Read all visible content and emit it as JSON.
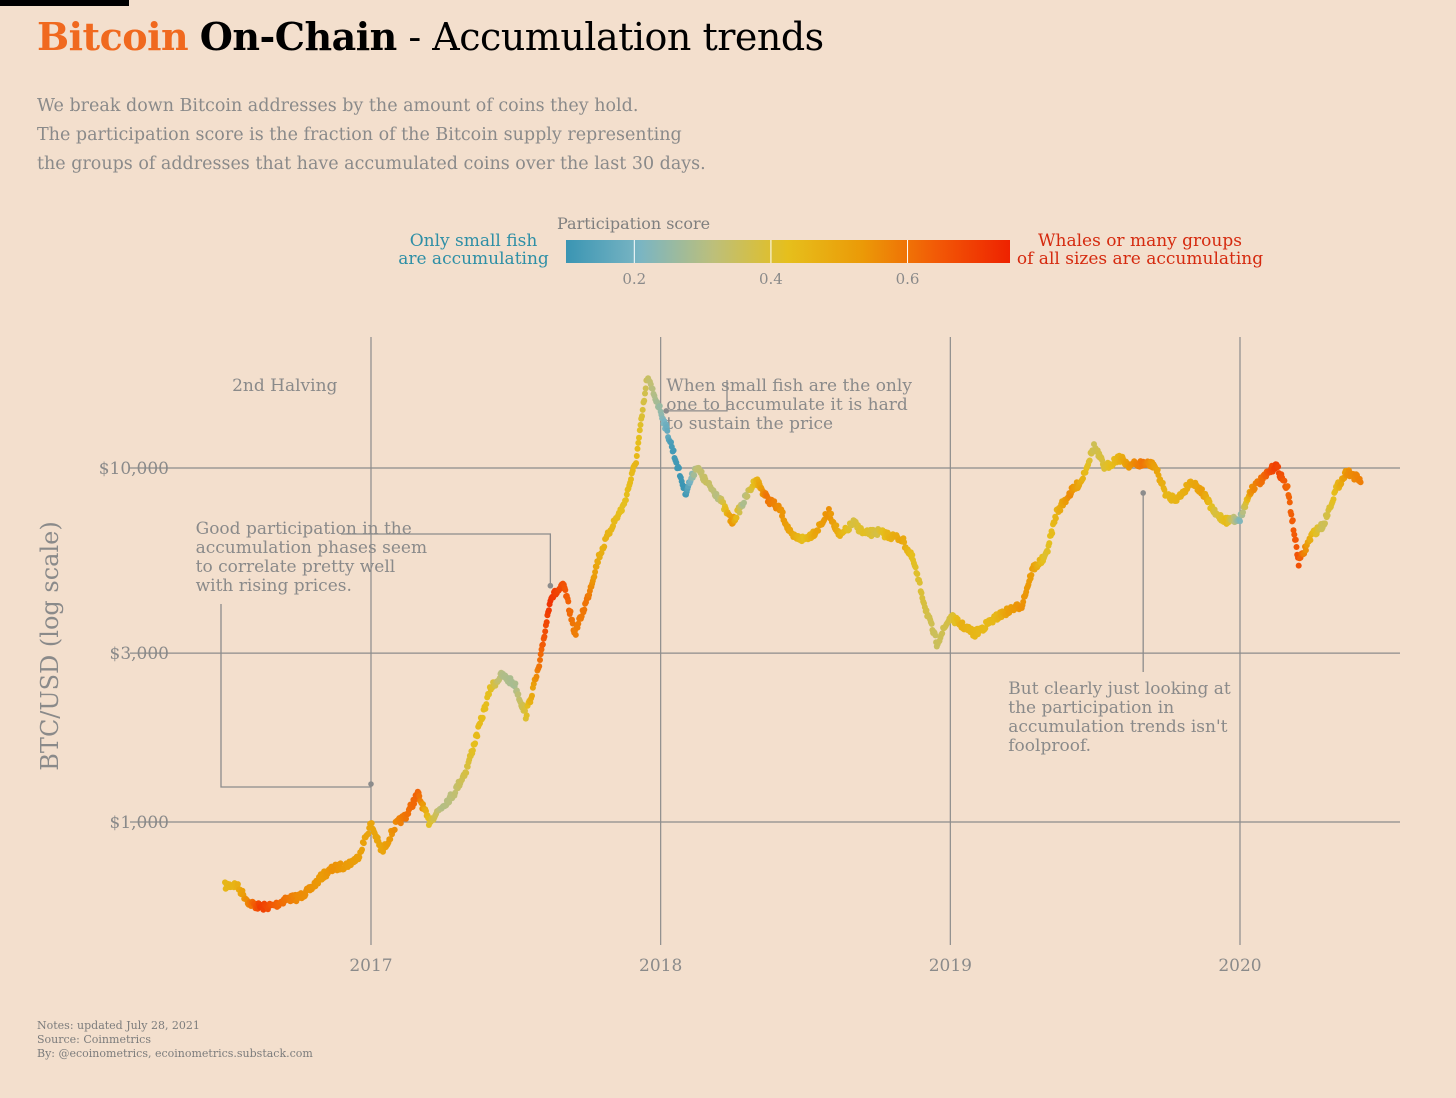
{
  "header": {
    "title_part1": "Bitcoin",
    "title_part2": "On-Chain",
    "title_part3": " - Accumulation trends",
    "subtitle_lines": [
      "We break down Bitcoin addresses by the amount of coins they hold.",
      "The participation score is the fraction of the Bitcoin supply representing",
      "the groups of addresses that have accumulated coins over the last 30 days."
    ]
  },
  "legend": {
    "title": "Participation score",
    "left_label_lines": [
      "Only small fish",
      "are accumulating"
    ],
    "right_label_lines": [
      "Whales or many groups",
      "of all sizes are accumulating"
    ],
    "ticks": [
      "0.2",
      "0.4",
      "0.6"
    ],
    "tick_values": [
      0.2,
      0.4,
      0.6
    ],
    "range": [
      0.1,
      0.75
    ],
    "colors": [
      "#3a95b3",
      "#7ab5c3",
      "#bdbf7a",
      "#e6bf1c",
      "#eb9a07",
      "#f25a06",
      "#ee2200"
    ]
  },
  "chart_data": {
    "type": "scatter",
    "ylabel": "BTC/USD (log scale)",
    "yscale": "log",
    "ylim": [
      420,
      26000
    ],
    "xlim": [
      "2016-07-01",
      "2020-06-01"
    ],
    "y_ticks": [
      1000,
      3000,
      10000
    ],
    "y_tick_labels": [
      "$1,000",
      "$3,000",
      "$10,000"
    ],
    "x_ticks": [
      "2017-01-01",
      "2018-01-01",
      "2019-01-01",
      "2020-01-01"
    ],
    "x_tick_labels": [
      "2017",
      "2018",
      "2019",
      "2020"
    ],
    "grid": true,
    "color_by": "participation_score",
    "series": [
      {
        "points": [
          [
            "2016-07-01",
            660,
            0.45
          ],
          [
            "2016-07-15",
            665,
            0.46
          ],
          [
            "2016-08-01",
            590,
            0.58
          ],
          [
            "2016-08-15",
            575,
            0.7
          ],
          [
            "2016-09-01",
            580,
            0.64
          ],
          [
            "2016-09-15",
            605,
            0.6
          ],
          [
            "2016-10-01",
            612,
            0.56
          ],
          [
            "2016-10-15",
            640,
            0.55
          ],
          [
            "2016-11-01",
            705,
            0.53
          ],
          [
            "2016-11-15",
            740,
            0.55
          ],
          [
            "2016-12-01",
            755,
            0.53
          ],
          [
            "2016-12-15",
            790,
            0.52
          ],
          [
            "2017-01-01",
            990,
            0.5
          ],
          [
            "2017-01-15",
            820,
            0.5
          ],
          [
            "2017-02-01",
            980,
            0.56
          ],
          [
            "2017-02-15",
            1050,
            0.6
          ],
          [
            "2017-03-01",
            1200,
            0.63
          ],
          [
            "2017-03-15",
            1000,
            0.42
          ],
          [
            "2017-04-01",
            1110,
            0.3
          ],
          [
            "2017-04-15",
            1200,
            0.32
          ],
          [
            "2017-05-01",
            1400,
            0.38
          ],
          [
            "2017-05-15",
            1780,
            0.44
          ],
          [
            "2017-06-01",
            2400,
            0.42
          ],
          [
            "2017-06-15",
            2600,
            0.3
          ],
          [
            "2017-07-01",
            2450,
            0.28
          ],
          [
            "2017-07-15",
            2000,
            0.4
          ],
          [
            "2017-08-01",
            2750,
            0.6
          ],
          [
            "2017-08-15",
            4300,
            0.72
          ],
          [
            "2017-09-01",
            4650,
            0.66
          ],
          [
            "2017-09-15",
            3400,
            0.58
          ],
          [
            "2017-10-01",
            4300,
            0.6
          ],
          [
            "2017-10-15",
            5600,
            0.48
          ],
          [
            "2017-11-01",
            6900,
            0.45
          ],
          [
            "2017-11-15",
            7800,
            0.42
          ],
          [
            "2017-12-01",
            10500,
            0.45
          ],
          [
            "2017-12-15",
            18000,
            0.35
          ],
          [
            "2018-01-01",
            14500,
            0.25
          ],
          [
            "2018-01-15",
            11500,
            0.12
          ],
          [
            "2018-02-01",
            8500,
            0.1
          ],
          [
            "2018-02-15",
            10100,
            0.32
          ],
          [
            "2018-03-01",
            9000,
            0.35
          ],
          [
            "2018-03-15",
            8300,
            0.3
          ],
          [
            "2018-04-01",
            7000,
            0.55
          ],
          [
            "2018-04-15",
            8000,
            0.28
          ],
          [
            "2018-05-01",
            9300,
            0.45
          ],
          [
            "2018-05-15",
            8200,
            0.6
          ],
          [
            "2018-06-01",
            7600,
            0.55
          ],
          [
            "2018-06-15",
            6400,
            0.5
          ],
          [
            "2018-07-01",
            6300,
            0.42
          ],
          [
            "2018-07-15",
            6600,
            0.5
          ],
          [
            "2018-08-01",
            7500,
            0.55
          ],
          [
            "2018-08-15",
            6400,
            0.47
          ],
          [
            "2018-09-01",
            7000,
            0.38
          ],
          [
            "2018-09-15",
            6500,
            0.42
          ],
          [
            "2018-10-01",
            6600,
            0.38
          ],
          [
            "2018-10-15",
            6450,
            0.46
          ],
          [
            "2018-11-01",
            6300,
            0.5
          ],
          [
            "2018-11-15",
            5500,
            0.42
          ],
          [
            "2018-12-01",
            4000,
            0.38
          ],
          [
            "2018-12-15",
            3200,
            0.35
          ],
          [
            "2019-01-01",
            3800,
            0.38
          ],
          [
            "2019-01-15",
            3600,
            0.47
          ],
          [
            "2019-02-01",
            3400,
            0.45
          ],
          [
            "2019-02-15",
            3600,
            0.44
          ],
          [
            "2019-03-01",
            3800,
            0.45
          ],
          [
            "2019-03-15",
            3950,
            0.52
          ],
          [
            "2019-04-01",
            4100,
            0.55
          ],
          [
            "2019-04-15",
            5200,
            0.52
          ],
          [
            "2019-05-01",
            5600,
            0.4
          ],
          [
            "2019-05-15",
            7500,
            0.46
          ],
          [
            "2019-06-01",
            8500,
            0.56
          ],
          [
            "2019-06-15",
            9200,
            0.48
          ],
          [
            "2019-07-01",
            11500,
            0.36
          ],
          [
            "2019-07-15",
            10000,
            0.4
          ],
          [
            "2019-08-01",
            10700,
            0.46
          ],
          [
            "2019-08-15",
            10200,
            0.54
          ],
          [
            "2019-09-01",
            10300,
            0.6
          ],
          [
            "2019-09-15",
            10200,
            0.52
          ],
          [
            "2019-10-01",
            8300,
            0.45
          ],
          [
            "2019-10-15",
            8200,
            0.46
          ],
          [
            "2019-11-01",
            9200,
            0.49
          ],
          [
            "2019-11-15",
            8500,
            0.52
          ],
          [
            "2019-12-01",
            7400,
            0.38
          ],
          [
            "2019-12-15",
            7100,
            0.44
          ],
          [
            "2020-01-01",
            7200,
            0.22
          ],
          [
            "2020-01-15",
            8700,
            0.55
          ],
          [
            "2020-02-01",
            9400,
            0.62
          ],
          [
            "2020-02-15",
            10200,
            0.7
          ],
          [
            "2020-03-01",
            8700,
            0.62
          ],
          [
            "2020-03-15",
            5400,
            0.66
          ],
          [
            "2020-04-01",
            6500,
            0.45
          ],
          [
            "2020-04-15",
            6900,
            0.35
          ],
          [
            "2020-05-01",
            8700,
            0.44
          ],
          [
            "2020-05-15",
            9800,
            0.55
          ],
          [
            "2020-06-01",
            9200,
            0.58
          ]
        ]
      }
    ],
    "annotations": [
      {
        "id": "halving",
        "lines": [
          "2nd Halving"
        ],
        "text_at": [
          "2016-07-10",
          16500
        ]
      },
      {
        "id": "small-fish",
        "lines": [
          "When small fish are the only",
          "one to accumulate it is hard",
          "to sustain the price"
        ],
        "text_at": [
          "2018-01-08",
          16500
        ],
        "point": [
          "2018-01-08",
          14500
        ]
      },
      {
        "id": "good-participation",
        "lines": [
          "Good participation in the",
          "accumulation phases seem",
          "to correlate pretty well",
          "with rising prices."
        ],
        "text_at": [
          "2016-05-25",
          6500
        ],
        "points": [
          [
            "2017-08-15",
            4650
          ],
          [
            "2017-01-01",
            1280
          ]
        ]
      },
      {
        "id": "not-foolproof",
        "lines": [
          "But clearly just looking at",
          "the participation in",
          "accumulation trends isn't",
          "foolproof."
        ],
        "text_at": [
          "2019-03-15",
          2300
        ],
        "point": [
          "2019-09-01",
          8500
        ]
      }
    ]
  },
  "footer": {
    "notes": "Notes: updated July 28, 2021",
    "source": "Source: Coinmetrics",
    "by": "By: @ecoinometrics, ecoinometrics.substack.com"
  }
}
